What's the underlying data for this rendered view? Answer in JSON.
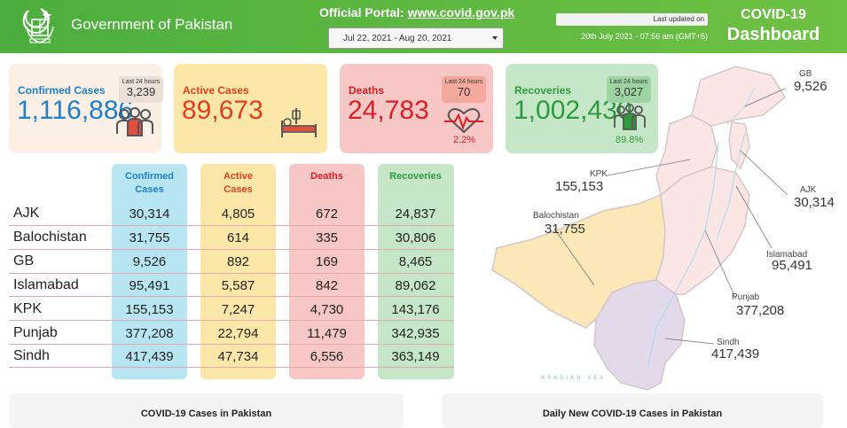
{
  "header": {
    "gov_title": "Government of Pakistan",
    "portal_label": "Official Portal:",
    "portal_link": "www.covid.gov.pk",
    "date_range": "Jul 22, 2021 - Aug 20, 2021",
    "last_updated_label": "Last updated on",
    "last_updated_value": "20th July 2021 - 07:56 am (GMT+5)",
    "dashboard_line1": "COVID-19",
    "dashboard_line2": "Dashboard"
  },
  "cards": {
    "confirmed": {
      "label": "Confirmed Cases",
      "value": "1,116,886",
      "last24_label": "Last 24 hours",
      "last24_value": "3,239"
    },
    "active": {
      "label": "Active Cases",
      "value": "89,673"
    },
    "deaths": {
      "label": "Deaths",
      "value": "24,783",
      "last24_label": "Last 24 hours",
      "last24_value": "70",
      "pct": "2.2%"
    },
    "recoveries": {
      "label": "Recoveries",
      "value": "1,002,430",
      "last24_label": "Last 24 hours",
      "last24_value": "3,027",
      "pct": "89.8%"
    }
  },
  "table": {
    "headers": {
      "confirmed_l1": "Confirmed",
      "confirmed_l2": "Cases",
      "active_l1": "Active",
      "active_l2": "Cases",
      "deaths": "Deaths",
      "recoveries": "Recoveries"
    },
    "rows": [
      {
        "region": "AJK",
        "confirmed": "30,314",
        "active": "4,805",
        "deaths": "672",
        "recoveries": "24,837"
      },
      {
        "region": "Balochistan",
        "confirmed": "31,755",
        "active": "614",
        "deaths": "335",
        "recoveries": "30,806"
      },
      {
        "region": "GB",
        "confirmed": "9,526",
        "active": "892",
        "deaths": "169",
        "recoveries": "8,465"
      },
      {
        "region": "Islamabad",
        "confirmed": "95,491",
        "active": "5,587",
        "deaths": "842",
        "recoveries": "89,062"
      },
      {
        "region": "KPK",
        "confirmed": "155,153",
        "active": "7,247",
        "deaths": "4,730",
        "recoveries": "143,176"
      },
      {
        "region": "Punjab",
        "confirmed": "377,208",
        "active": "22,794",
        "deaths": "11,479",
        "recoveries": "342,935"
      },
      {
        "region": "Sindh",
        "confirmed": "417,439",
        "active": "47,734",
        "deaths": "6,556",
        "recoveries": "363,149"
      }
    ]
  },
  "map": {
    "gb": {
      "label": "GB",
      "value": "9,526"
    },
    "kpk": {
      "label": "KPK",
      "value": "155,153"
    },
    "ajk": {
      "label": "AJK",
      "value": "30,314"
    },
    "balochistan": {
      "label": "Balochistan",
      "value": "31,755"
    },
    "islamabad": {
      "label": "Islamabad",
      "value": "95,491"
    },
    "punjab": {
      "label": "Punjab",
      "value": "377,208"
    },
    "sindh": {
      "label": "Sindh",
      "value": "417,439"
    },
    "sea_label": "ARABIAN SEA"
  },
  "panels": {
    "left_title": "COVID-19 Cases in Pakistan",
    "right_title": "Daily New COVID-19 Cases in Pakistan"
  },
  "colors": {
    "header_green": "#4cae3e",
    "confirmed_blue": "#1f80c9",
    "active_orange": "#e0401f",
    "deaths_red": "#d92027",
    "recoveries_green": "#2e9a3e"
  }
}
